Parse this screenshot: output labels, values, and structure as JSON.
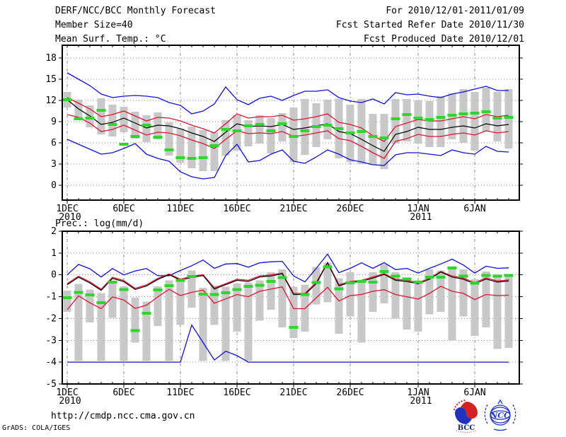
{
  "header": {
    "title": "DERF/NCC/BCC Monthly Forecast",
    "member_size": "Member Size=40",
    "temp_label": "Mean Surf. Temp.: °C",
    "for_range": "For 2010/12/01-2011/01/09",
    "refer_date": "Fcst Started Refer Date 2010/11/30",
    "produced_date": "Fcst Produced Date 2010/12/01"
  },
  "prec_label": "Prec.: log(mm/d)",
  "footer": {
    "url": "http://cmdp.ncc.cma.gov.cn",
    "credit": "GrADS: COLA/IGES",
    "logos": [
      {
        "label": "BCC"
      },
      {
        "label": "NCC"
      }
    ]
  },
  "colors": {
    "blue": "#1010d8",
    "red": "#dc1432",
    "green": "#2ed52e",
    "gray": "#c8c8c8",
    "black": "#000000"
  },
  "chart_data": [
    {
      "type": "line",
      "name": "mean-surface-temperature",
      "title": "Mean Surf. Temp.: °C",
      "n_days": 40,
      "x_ticks": [
        {
          "day": 0,
          "label": "1DEC",
          "sub": "2010"
        },
        {
          "day": 5,
          "label": "6DEC"
        },
        {
          "day": 10,
          "label": "11DEC"
        },
        {
          "day": 15,
          "label": "16DEC"
        },
        {
          "day": 20,
          "label": "21DEC"
        },
        {
          "day": 25,
          "label": "26DEC"
        },
        {
          "day": 31,
          "label": "1JAN",
          "sub": "2011"
        },
        {
          "day": 36,
          "label": "6JAN"
        }
      ],
      "ylim": [
        -2.1,
        19.8
      ],
      "yticks": [
        0,
        3,
        6,
        9,
        12,
        15,
        18
      ],
      "series": [
        {
          "name": "ensemble-max",
          "color": "blue",
          "values": [
            15.9,
            15.0,
            14.1,
            12.9,
            12.4,
            12.6,
            12.7,
            12.6,
            12.4,
            11.7,
            11.3,
            10.1,
            10.5,
            11.5,
            13.9,
            12.1,
            11.4,
            12.3,
            12.6,
            12.0,
            12.7,
            13.3,
            13.3,
            13.5,
            12.4,
            11.9,
            11.7,
            12.2,
            11.5,
            13.1,
            12.8,
            12.9,
            12.6,
            12.4,
            12.9,
            13.2,
            13.6,
            14.0,
            13.4,
            13.4
          ]
        },
        {
          "name": "mean-plus-spread",
          "color": "red",
          "values": [
            12.4,
            11.6,
            10.8,
            9.7,
            10.0,
            10.5,
            9.8,
            9.1,
            9.6,
            9.5,
            9.1,
            8.5,
            8.0,
            7.4,
            8.7,
            10.1,
            9.5,
            9.7,
            9.7,
            9.9,
            9.2,
            9.4,
            9.7,
            10.1,
            8.9,
            8.6,
            8.1,
            7.0,
            6.2,
            8.3,
            8.8,
            9.3,
            9.1,
            9.1,
            9.4,
            9.7,
            9.4,
            10.0,
            9.7,
            9.9
          ]
        },
        {
          "name": "ensemble-mean",
          "color": "black",
          "values": [
            12.1,
            10.8,
            9.8,
            8.6,
            8.9,
            9.5,
            8.8,
            8.1,
            8.5,
            8.4,
            8.0,
            7.4,
            6.9,
            6.2,
            7.5,
            8.7,
            8.3,
            8.4,
            8.3,
            8.6,
            7.9,
            8.1,
            8.4,
            8.7,
            7.6,
            7.3,
            6.5,
            5.6,
            4.8,
            7.2,
            7.6,
            8.2,
            7.9,
            7.9,
            8.2,
            8.4,
            8.1,
            8.7,
            8.4,
            8.6
          ]
        },
        {
          "name": "mean-minus-spread",
          "color": "red",
          "values": [
            10.0,
            9.6,
            8.8,
            7.6,
            7.9,
            8.5,
            7.8,
            7.1,
            7.5,
            7.4,
            7.0,
            6.4,
            5.9,
            5.2,
            6.5,
            7.7,
            7.3,
            7.4,
            7.3,
            7.6,
            6.9,
            7.1,
            7.4,
            7.7,
            6.6,
            6.3,
            5.5,
            4.6,
            3.8,
            6.2,
            6.6,
            7.2,
            6.9,
            6.9,
            7.2,
            7.4,
            7.1,
            7.7,
            7.4,
            7.6
          ]
        },
        {
          "name": "ensemble-min",
          "color": "blue",
          "values": [
            6.5,
            5.8,
            5.1,
            4.4,
            4.6,
            5.2,
            5.9,
            4.4,
            3.8,
            3.4,
            1.9,
            1.2,
            0.9,
            1.1,
            4.2,
            5.8,
            3.3,
            3.5,
            4.4,
            5.0,
            3.4,
            3.1,
            4.0,
            5.0,
            4.4,
            3.6,
            3.3,
            2.9,
            2.8,
            4.3,
            4.6,
            4.6,
            4.4,
            4.2,
            5.0,
            4.6,
            4.4,
            5.5,
            4.8,
            4.7
          ]
        }
      ],
      "markers": {
        "name": "observation",
        "color": "green",
        "values": [
          12.1,
          9.4,
          9.5,
          10.6,
          8.6,
          5.8,
          6.9,
          8.5,
          6.8,
          5.0,
          3.9,
          3.8,
          3.9,
          5.6,
          7.9,
          7.7,
          8.4,
          8.6,
          7.7,
          8.7,
          6.9,
          7.7,
          8.3,
          8.5,
          8.0,
          7.4,
          7.6,
          6.9,
          6.7,
          9.4,
          10.0,
          9.5,
          9.3,
          9.6,
          9.9,
          10.1,
          10.2,
          10.4,
          9.5,
          9.6
        ]
      },
      "bars": {
        "name": "member-spread",
        "color": "gray",
        "ranges": [
          [
            11.0,
            13.2
          ],
          [
            9.2,
            12.1
          ],
          [
            8.2,
            11.3
          ],
          [
            7.2,
            12.3
          ],
          [
            6.9,
            11.4
          ],
          [
            7.5,
            11.1
          ],
          [
            6.6,
            10.4
          ],
          [
            6.1,
            9.9
          ],
          [
            6.5,
            10.3
          ],
          [
            4.2,
            8.9
          ],
          [
            3.2,
            8.0
          ],
          [
            2.4,
            8.3
          ],
          [
            2.0,
            7.8
          ],
          [
            2.0,
            7.5
          ],
          [
            4.2,
            9.2
          ],
          [
            4.9,
            9.9
          ],
          [
            5.5,
            9.2
          ],
          [
            5.9,
            9.9
          ],
          [
            4.5,
            9.5
          ],
          [
            6.2,
            10.2
          ],
          [
            3.3,
            11.0
          ],
          [
            4.3,
            12.2
          ],
          [
            5.4,
            11.6
          ],
          [
            6.5,
            12.1
          ],
          [
            3.8,
            12.2
          ],
          [
            3.3,
            11.4
          ],
          [
            3.0,
            12.2
          ],
          [
            2.9,
            10.1
          ],
          [
            2.3,
            10.1
          ],
          [
            5.9,
            12.2
          ],
          [
            6.2,
            12.2
          ],
          [
            5.9,
            12.0
          ],
          [
            5.4,
            11.9
          ],
          [
            5.4,
            12.6
          ],
          [
            6.5,
            13.0
          ],
          [
            6.0,
            13.6
          ],
          [
            4.9,
            13.2
          ],
          [
            7.6,
            13.8
          ],
          [
            6.2,
            13.2
          ],
          [
            5.2,
            13.6
          ]
        ]
      }
    },
    {
      "type": "line",
      "name": "precipitation-log",
      "title": "Prec.: log(mm/d)",
      "n_days": 40,
      "x_ticks": [
        {
          "day": 0,
          "label": "1DEC",
          "sub": "2010"
        },
        {
          "day": 5,
          "label": "6DEC"
        },
        {
          "day": 10,
          "label": "11DEC"
        },
        {
          "day": 15,
          "label": "16DEC"
        },
        {
          "day": 20,
          "label": "21DEC"
        },
        {
          "day": 25,
          "label": "26DEC"
        },
        {
          "day": 31,
          "label": "1JAN",
          "sub": "2011"
        },
        {
          "day": 36,
          "label": "6JAN"
        }
      ],
      "ylim": [
        -5,
        2
      ],
      "yticks": [
        2,
        1,
        0,
        -1,
        -2,
        -3,
        -4,
        -5
      ],
      "series": [
        {
          "name": "ensemble-max",
          "color": "blue",
          "values": [
            0.0,
            0.48,
            0.28,
            -0.1,
            0.29,
            0.0,
            0.18,
            0.29,
            -0.04,
            -0.04,
            0.2,
            0.42,
            0.68,
            0.3,
            0.5,
            0.52,
            0.35,
            0.55,
            0.6,
            0.62,
            -0.05,
            -0.32,
            0.3,
            0.95,
            0.1,
            0.3,
            0.55,
            0.3,
            0.56,
            0.24,
            0.3,
            0.08,
            0.3,
            0.5,
            0.72,
            0.45,
            0.08,
            0.4,
            0.3,
            0.32
          ]
        },
        {
          "name": "mean-plus-spread",
          "color": "red",
          "values": [
            -0.4,
            -0.06,
            -0.32,
            -0.66,
            -0.11,
            -0.26,
            -0.62,
            -0.46,
            -0.16,
            0.04,
            -0.2,
            -0.06,
            0.01,
            -0.6,
            -0.4,
            -0.2,
            -0.25,
            -0.05,
            0.0,
            0.08,
            -0.85,
            -0.85,
            -0.35,
            0.57,
            -0.45,
            -0.3,
            -0.25,
            -0.1,
            0.06,
            -0.2,
            -0.25,
            -0.36,
            -0.15,
            0.16,
            -0.05,
            -0.15,
            -0.36,
            -0.14,
            -0.28,
            -0.23
          ]
        },
        {
          "name": "ensemble-mean",
          "color": "black",
          "values": [
            -0.45,
            -0.11,
            -0.37,
            -0.71,
            -0.16,
            -0.31,
            -0.67,
            -0.51,
            -0.21,
            0.01,
            -0.25,
            -0.11,
            -0.03,
            -0.65,
            -0.45,
            -0.25,
            -0.3,
            -0.1,
            -0.05,
            0.05,
            -0.9,
            -0.9,
            -0.4,
            0.55,
            -0.5,
            -0.35,
            -0.3,
            -0.15,
            0.02,
            -0.25,
            -0.3,
            -0.41,
            -0.2,
            0.13,
            -0.1,
            -0.2,
            -0.41,
            -0.19,
            -0.33,
            -0.28
          ]
        },
        {
          "name": "mean-minus-spread",
          "color": "red",
          "values": [
            -1.6,
            -0.96,
            -1.28,
            -1.55,
            -1.01,
            -1.15,
            -1.54,
            -1.39,
            -1.01,
            -0.66,
            -0.95,
            -0.8,
            -0.7,
            -1.3,
            -1.1,
            -0.9,
            -1.0,
            -0.75,
            -0.65,
            -0.55,
            -1.55,
            -1.55,
            -1.05,
            -0.57,
            -1.2,
            -0.95,
            -0.9,
            -0.75,
            -0.68,
            -0.9,
            -1.0,
            -1.11,
            -0.85,
            -0.52,
            -0.75,
            -0.85,
            -1.13,
            -0.9,
            -0.95,
            -0.93
          ]
        },
        {
          "name": "ensemble-min",
          "color": "blue",
          "values": [
            -4,
            -4,
            -4,
            -4,
            -4,
            -4,
            -4,
            -4,
            -4,
            -4,
            -4,
            -2.3,
            -3.1,
            -3.9,
            -3.5,
            -3.7,
            -4,
            -4,
            -4,
            -4,
            -4,
            -4,
            -4,
            -4,
            -4,
            -4,
            -4,
            -4,
            -4,
            -4,
            -4,
            -4,
            -4,
            -4,
            -4,
            -4,
            -4,
            -4,
            -4,
            -4
          ]
        }
      ],
      "markers": {
        "name": "observation",
        "color": "green",
        "values": [
          -1.04,
          -0.81,
          -0.91,
          -1.27,
          -0.33,
          -0.68,
          -2.55,
          -1.76,
          -0.69,
          -0.49,
          -0.25,
          -0.08,
          -0.89,
          -0.9,
          -0.82,
          -0.68,
          -0.52,
          -0.48,
          -0.3,
          -0.12,
          -2.4,
          -0.9,
          -0.35,
          0.37,
          -0.64,
          -0.37,
          -0.3,
          -0.33,
          0.15,
          -0.05,
          -0.19,
          -0.33,
          -0.11,
          -0.1,
          0.32,
          -0.06,
          -0.38,
          -0.03,
          -0.05,
          -0.03
        ]
      },
      "bars": {
        "name": "member-spread",
        "color": "gray",
        "ranges": [
          [
            -1.7,
            -0.73
          ],
          [
            -3.95,
            -0.41
          ],
          [
            -2.18,
            -0.68
          ],
          [
            -3.95,
            -0.84
          ],
          [
            -1.97,
            -0.35
          ],
          [
            -3.95,
            -0.52
          ],
          [
            -3.1,
            -1.05
          ],
          [
            -3.95,
            -1.22
          ],
          [
            -2.34,
            -0.52
          ],
          [
            -3.95,
            -0.25
          ],
          [
            -2.3,
            -0.15
          ],
          [
            -1.5,
            0.2
          ],
          [
            -3.95,
            -0.6
          ],
          [
            -2.3,
            -0.5
          ],
          [
            -3.95,
            -0.55
          ],
          [
            -2.6,
            -0.4
          ],
          [
            -3.95,
            -0.35
          ],
          [
            -2.1,
            -0.25
          ],
          [
            -1.6,
            0.12
          ],
          [
            -2.4,
            0.25
          ],
          [
            -2.9,
            -0.55
          ],
          [
            -2.6,
            -0.45
          ],
          [
            -1.35,
            0.35
          ],
          [
            -1.25,
            0.55
          ],
          [
            -2.7,
            -0.15
          ],
          [
            -1.9,
            0.12
          ],
          [
            -3.1,
            -0.25
          ],
          [
            -1.7,
            0.12
          ],
          [
            -1.3,
            0.5
          ],
          [
            -2.0,
            0.12
          ],
          [
            -2.5,
            -0.12
          ],
          [
            -2.6,
            -0.25
          ],
          [
            -1.8,
            0.25
          ],
          [
            -1.7,
            0.2
          ],
          [
            -3.0,
            0.4
          ],
          [
            -1.9,
            0.25
          ],
          [
            -2.8,
            -0.2
          ],
          [
            -2.4,
            0.15
          ],
          [
            -3.4,
            -0.1
          ],
          [
            -3.35,
            0.02
          ]
        ]
      }
    }
  ]
}
